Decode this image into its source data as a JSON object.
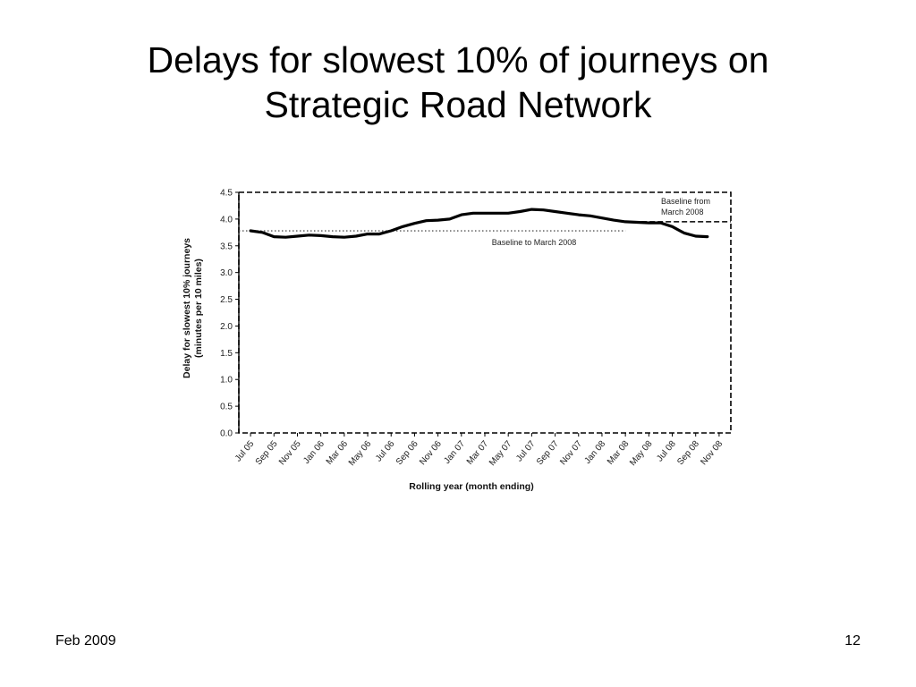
{
  "slide": {
    "title_line1": "Delays for slowest 10% of journeys on",
    "title_line2": "Strategic Road Network",
    "footer_date": "Feb 2009",
    "page_number": "12"
  },
  "chart_data": {
    "type": "line",
    "title": "",
    "ylabel_line1": "Delay for slowest 10% journeys",
    "ylabel_line2": "(minutes per 10 miles)",
    "xlabel": "Rolling year (month ending)",
    "ylim": [
      0,
      4.5
    ],
    "yticks": [
      "0.0",
      "0.5",
      "1.0",
      "1.5",
      "2.0",
      "2.5",
      "3.0",
      "3.5",
      "4.0",
      "4.5"
    ],
    "categories": [
      "Jul 05",
      "Sep 05",
      "Nov 05",
      "Jan 06",
      "Mar 06",
      "May 06",
      "Jul 06",
      "Sep 06",
      "Nov 06",
      "Jan 07",
      "Mar 07",
      "May 07",
      "Jul 07",
      "Sep 07",
      "Nov 07",
      "Jan 08",
      "Mar 08",
      "May 08",
      "Jul 08",
      "Sep 08",
      "Nov 08"
    ],
    "x": [
      "Jul 05",
      "Aug 05",
      "Sep 05",
      "Oct 05",
      "Nov 05",
      "Dec 05",
      "Jan 06",
      "Feb 06",
      "Mar 06",
      "Apr 06",
      "May 06",
      "Jun 06",
      "Jul 06",
      "Aug 06",
      "Sep 06",
      "Oct 06",
      "Nov 06",
      "Dec 06",
      "Jan 07",
      "Feb 07",
      "Mar 07",
      "Apr 07",
      "May 07",
      "Jun 07",
      "Jul 07",
      "Aug 07",
      "Sep 07",
      "Oct 07",
      "Nov 07",
      "Dec 07",
      "Jan 08",
      "Feb 08",
      "Mar 08",
      "Apr 08",
      "May 08",
      "Jun 08",
      "Jul 08",
      "Aug 08",
      "Sep 08",
      "Oct 08"
    ],
    "series": [
      {
        "name": "",
        "values": [
          3.78,
          3.75,
          3.67,
          3.66,
          3.68,
          3.7,
          3.69,
          3.67,
          3.66,
          3.68,
          3.72,
          3.72,
          3.78,
          3.86,
          3.92,
          3.97,
          3.98,
          4.0,
          4.08,
          4.11,
          4.11,
          4.11,
          4.11,
          4.14,
          4.18,
          4.17,
          4.14,
          4.11,
          4.08,
          4.06,
          4.02,
          3.98,
          3.95,
          3.94,
          3.93,
          3.93,
          3.86,
          3.74,
          3.68,
          3.67
        ]
      }
    ],
    "baseline_to_march_2008": {
      "label": "Baseline to March 2008",
      "value": 3.78
    },
    "baseline_from_march_2008": {
      "label_line1": "Baseline from",
      "label_line2": "March 2008",
      "value": 3.95
    },
    "colors": {
      "line": "#000000",
      "dotted": "#555555",
      "dashed": "#000000"
    },
    "grid": false,
    "legend": "none"
  }
}
